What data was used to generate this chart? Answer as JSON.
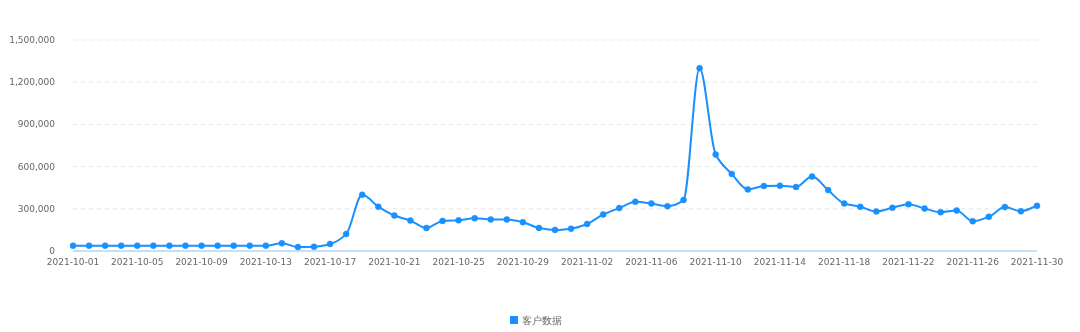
{
  "chart_data": {
    "type": "line",
    "categories": [
      "2021-10-01",
      null,
      null,
      null,
      "2021-10-05",
      null,
      null,
      null,
      "2021-10-09",
      null,
      null,
      null,
      "2021-10-13",
      null,
      null,
      null,
      "2021-10-17",
      null,
      null,
      null,
      "2021-10-21",
      null,
      null,
      null,
      "2021-10-25",
      null,
      null,
      null,
      "2021-10-29",
      null,
      null,
      null,
      "2021-11-02",
      null,
      null,
      null,
      "2021-11-06",
      null,
      null,
      null,
      "2021-11-10",
      null,
      null,
      null,
      "2021-11-14",
      null,
      null,
      null,
      "2021-11-18",
      null,
      null,
      null,
      "2021-11-22",
      null,
      null,
      null,
      "2021-11-26",
      null,
      null,
      null,
      "2021-11-30"
    ],
    "series": [
      {
        "name": "客户数据",
        "color": "#1890ff",
        "values": [
          38000,
          38000,
          38000,
          38000,
          38000,
          38000,
          38000,
          38000,
          38000,
          38000,
          38000,
          38000,
          38000,
          55000,
          28000,
          30000,
          50000,
          120000,
          400000,
          315000,
          252000,
          216000,
          164000,
          214000,
          218000,
          233000,
          224000,
          224000,
          205000,
          164000,
          150000,
          159000,
          192000,
          260000,
          305000,
          350000,
          338000,
          319000,
          362000,
          1300000,
          686000,
          548000,
          438000,
          462000,
          464000,
          455000,
          529000,
          433000,
          338000,
          314000,
          281000,
          307000,
          333000,
          302000,
          276000,
          288000,
          212000,
          243000,
          312000,
          283000,
          321000
        ]
      }
    ],
    "ylim": [
      0,
      1500000
    ],
    "yticks": [
      {
        "value": 0,
        "label": "0"
      },
      {
        "value": 300000,
        "label": "300,000"
      },
      {
        "value": 600000,
        "label": "600,000"
      },
      {
        "value": 900000,
        "label": "900,000"
      },
      {
        "value": 1200000,
        "label": "1,200,000"
      },
      {
        "value": 1500000,
        "label": "1,500,000"
      }
    ],
    "grid": "y",
    "legend": "bottom",
    "marker": "circle",
    "line_style": "solid"
  }
}
